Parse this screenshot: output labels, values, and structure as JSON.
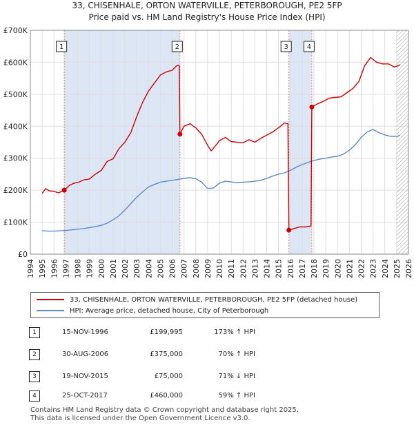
{
  "header": {
    "title_line1": "33, CHISENHALE, ORTON WATERVILLE, PETERBOROUGH, PE2 5FP",
    "title_line2": "Price paid vs. HM Land Registry's House Price Index (HPI)"
  },
  "colors": {
    "property": "#cc0000",
    "hpi": "#5b8ac6",
    "shade": "#dde6f5",
    "vline": "#e08080"
  },
  "legend": {
    "property_label": "33, CHISENHALE, ORTON WATERVILLE, PETERBOROUGH, PE2 5FP (detached house)",
    "hpi_label": "HPI: Average price, detached house, City of Peterborough"
  },
  "transactions": [
    {
      "num": "1",
      "date": "15-NOV-1996",
      "price": "£199,995",
      "hpi_change": "173% ↑ HPI"
    },
    {
      "num": "2",
      "date": "30-AUG-2006",
      "price": "£375,000",
      "hpi_change": "70% ↑ HPI"
    },
    {
      "num": "3",
      "date": "19-NOV-2015",
      "price": "£75,000",
      "hpi_change": "71% ↓ HPI"
    },
    {
      "num": "4",
      "date": "25-OCT-2017",
      "price": "£460,000",
      "hpi_change": "59% ↑ HPI"
    }
  ],
  "footer": {
    "line1": "Contains HM Land Registry data © Crown copyright and database right 2025.",
    "line2": "This data is licensed under the Open Government Licence v3.0."
  },
  "chart_data": {
    "type": "line",
    "title": "33, CHISENHALE, ORTON WATERVILLE, PETERBOROUGH, PE2 5FP",
    "subtitle": "Price paid vs. HM Land Registry's House Price Index (HPI)",
    "xlim": [
      1994,
      2026
    ],
    "ylim": [
      0,
      700000
    ],
    "x_ticks": [
      1994,
      1995,
      1996,
      1997,
      1998,
      1999,
      2000,
      2001,
      2002,
      2003,
      2004,
      2005,
      2006,
      2007,
      2008,
      2009,
      2010,
      2011,
      2012,
      2013,
      2014,
      2015,
      2016,
      2017,
      2018,
      2019,
      2020,
      2021,
      2022,
      2023,
      2024,
      2025,
      2026
    ],
    "y_ticks": [
      {
        "value": 0,
        "label": "£0"
      },
      {
        "value": 100000,
        "label": "£100K"
      },
      {
        "value": 200000,
        "label": "£200K"
      },
      {
        "value": 300000,
        "label": "£300K"
      },
      {
        "value": 400000,
        "label": "£400K"
      },
      {
        "value": 500000,
        "label": "£500K"
      },
      {
        "value": 600000,
        "label": "£600K"
      },
      {
        "value": 700000,
        "label": "£700K"
      }
    ],
    "grid": true,
    "shaded_spans": [
      [
        1996.87,
        2006.66
      ],
      [
        2015.88,
        2017.82
      ]
    ],
    "hatch_from": 2025.0,
    "markers": [
      {
        "label": "1",
        "x": 1996.87,
        "y": 199995
      },
      {
        "label": "2",
        "x": 2006.66,
        "y": 375000
      },
      {
        "label": "3",
        "x": 2015.88,
        "y": 75000
      },
      {
        "label": "4",
        "x": 2017.82,
        "y": 460000
      }
    ],
    "series": [
      {
        "name": "33, CHISENHALE, ORTON WATERVILLE, PETERBOROUGH, PE2 5FP (detached house)",
        "x": [
          1995.0,
          1995.3,
          1995.6,
          1996.0,
          1996.4,
          1996.87,
          1997.3,
          1997.7,
          1998.1,
          1998.5,
          1999.0,
          1999.5,
          2000.0,
          2000.5,
          2001.0,
          2001.5,
          2002.0,
          2002.5,
          2003.0,
          2003.5,
          2004.0,
          2004.5,
          2005.0,
          2005.5,
          2006.0,
          2006.4,
          2006.6,
          2006.66,
          2007.0,
          2007.5,
          2008.0,
          2008.5,
          2009.0,
          2009.3,
          2009.7,
          2010.0,
          2010.5,
          2011.0,
          2011.5,
          2012.0,
          2012.5,
          2013.0,
          2013.5,
          2014.0,
          2014.5,
          2015.0,
          2015.5,
          2015.8,
          2015.88,
          2016.3,
          2016.8,
          2017.3,
          2017.75,
          2017.82,
          2018.3,
          2018.8,
          2019.3,
          2019.8,
          2020.3,
          2020.8,
          2021.3,
          2021.8,
          2022.3,
          2022.8,
          2023.3,
          2023.8,
          2024.3,
          2024.8,
          2025.3
        ],
        "values": [
          190000,
          205000,
          198000,
          196000,
          192000,
          199995,
          215000,
          222000,
          225000,
          232000,
          235000,
          250000,
          262000,
          290000,
          298000,
          330000,
          350000,
          380000,
          430000,
          475000,
          510000,
          535000,
          560000,
          570000,
          575000,
          590000,
          590000,
          375000,
          400000,
          408000,
          395000,
          375000,
          340000,
          323000,
          340000,
          355000,
          365000,
          352000,
          350000,
          348000,
          358000,
          350000,
          362000,
          372000,
          382000,
          395000,
          410000,
          408000,
          75000,
          80000,
          85000,
          85000,
          88000,
          460000,
          470000,
          478000,
          488000,
          490000,
          492000,
          505000,
          518000,
          540000,
          590000,
          615000,
          600000,
          595000,
          595000,
          585000,
          592000
        ]
      },
      {
        "name": "HPI: Average price, detached house, City of Peterborough",
        "x": [
          1995.0,
          1995.5,
          1996.0,
          1996.5,
          1997.0,
          1997.5,
          1998.0,
          1998.5,
          1999.0,
          1999.5,
          2000.0,
          2000.5,
          2001.0,
          2001.5,
          2002.0,
          2002.5,
          2003.0,
          2003.5,
          2004.0,
          2004.5,
          2005.0,
          2005.5,
          2006.0,
          2006.5,
          2007.0,
          2007.5,
          2008.0,
          2008.5,
          2009.0,
          2009.5,
          2010.0,
          2010.5,
          2011.0,
          2011.5,
          2012.0,
          2012.5,
          2013.0,
          2013.5,
          2014.0,
          2014.5,
          2015.0,
          2015.5,
          2016.0,
          2016.5,
          2017.0,
          2017.5,
          2018.0,
          2018.5,
          2019.0,
          2019.5,
          2020.0,
          2020.5,
          2021.0,
          2021.5,
          2022.0,
          2022.5,
          2023.0,
          2023.5,
          2024.0,
          2024.5,
          2025.0,
          2025.3
        ],
        "values": [
          73000,
          72000,
          72000,
          73000,
          74000,
          76000,
          78000,
          80000,
          83000,
          86000,
          90000,
          97000,
          107000,
          120000,
          138000,
          158000,
          178000,
          195000,
          210000,
          218000,
          225000,
          228000,
          231000,
          234000,
          237000,
          239000,
          236000,
          225000,
          205000,
          207000,
          222000,
          228000,
          226000,
          223000,
          225000,
          226000,
          228000,
          231000,
          237000,
          244000,
          250000,
          254000,
          262000,
          272000,
          280000,
          287000,
          293000,
          297000,
          300000,
          304000,
          306000,
          313000,
          325000,
          342000,
          365000,
          382000,
          390000,
          380000,
          373000,
          368000,
          368000,
          372000
        ]
      }
    ]
  }
}
